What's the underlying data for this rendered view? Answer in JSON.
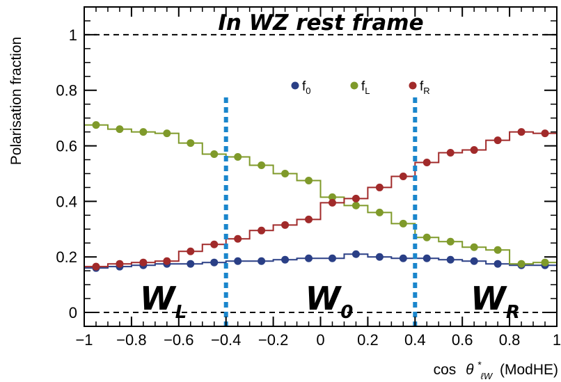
{
  "chart_data": {
    "type": "line",
    "title": "In WZ rest frame",
    "xlabel": "cos θ*ℓW (ModHE)",
    "xlabel_main": "cos",
    "xlabel_theta": "θ",
    "xlabel_sup": "*",
    "xlabel_sub": "ℓW",
    "xlabel_suffix": "(ModHE)",
    "ylabel": "Polarisation fraction",
    "xlim": [
      -1,
      1
    ],
    "ylim": [
      -0.05,
      1.1
    ],
    "xticks": [
      -1,
      -0.8,
      -0.6,
      -0.4,
      -0.2,
      0,
      0.2,
      0.4,
      0.6,
      0.8,
      1
    ],
    "xtick_labels": [
      "−1",
      "−0.8",
      "−0.6",
      "−0.4",
      "−0.2",
      "0",
      "0.2",
      "0.4",
      "0.6",
      "0.8",
      "1"
    ],
    "yticks": [
      0,
      0.2,
      0.4,
      0.6,
      0.8,
      1
    ],
    "ytick_labels": [
      "0",
      "0.2",
      "0.4",
      "0.6",
      "0.8",
      "1"
    ],
    "reference_lines": [
      0,
      1
    ],
    "region_cuts": [
      -0.4,
      0.4
    ],
    "regions": [
      {
        "label": "W",
        "sub": "L",
        "x": -0.7
      },
      {
        "label": "W",
        "sub": "0",
        "x": 0.0
      },
      {
        "label": "W",
        "sub": "R",
        "x": 0.7
      }
    ],
    "bin_centers": [
      -0.95,
      -0.85,
      -0.75,
      -0.65,
      -0.55,
      -0.45,
      -0.35,
      -0.25,
      -0.15,
      -0.05,
      0.05,
      0.15,
      0.25,
      0.35,
      0.45,
      0.55,
      0.65,
      0.75,
      0.85,
      0.95
    ],
    "series": [
      {
        "name": "f0",
        "label_main": "f",
        "label_sub": "0",
        "color": "#2a3f86",
        "values": [
          0.16,
          0.165,
          0.17,
          0.175,
          0.175,
          0.18,
          0.185,
          0.185,
          0.19,
          0.195,
          0.195,
          0.21,
          0.2,
          0.195,
          0.195,
          0.19,
          0.185,
          0.175,
          0.17,
          0.17
        ]
      },
      {
        "name": "fL",
        "label_main": "f",
        "label_sub": "L",
        "color": "#7f9a2a",
        "values": [
          0.675,
          0.66,
          0.65,
          0.645,
          0.61,
          0.57,
          0.56,
          0.53,
          0.5,
          0.475,
          0.415,
          0.385,
          0.36,
          0.32,
          0.27,
          0.255,
          0.235,
          0.225,
          0.175,
          0.18
        ]
      },
      {
        "name": "fR",
        "label_main": "f",
        "label_sub": "R",
        "color": "#a12a2a",
        "values": [
          0.165,
          0.175,
          0.18,
          0.185,
          0.22,
          0.245,
          0.265,
          0.295,
          0.315,
          0.335,
          0.395,
          0.41,
          0.45,
          0.49,
          0.54,
          0.575,
          0.585,
          0.62,
          0.65,
          0.645
        ]
      }
    ],
    "legend": "top, inside plot",
    "grid": false
  },
  "colors": {
    "cut_line": "#1a86cc",
    "frame": "#000000"
  }
}
